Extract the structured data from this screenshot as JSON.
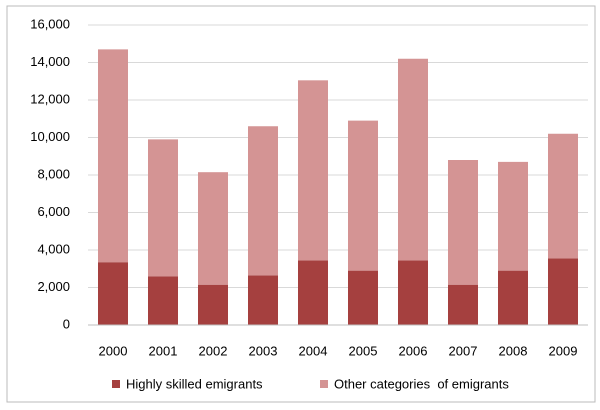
{
  "chart_data": {
    "type": "stacked-bar",
    "categories": [
      "2000",
      "2001",
      "2002",
      "2003",
      "2004",
      "2005",
      "2006",
      "2007",
      "2008",
      "2009"
    ],
    "series": [
      {
        "name": "Highly skilled emigrants",
        "color": "#a5403f",
        "values": [
          3350,
          2600,
          2150,
          2650,
          3450,
          2900,
          3450,
          2150,
          2900,
          3550
        ]
      },
      {
        "name": "Other categories  of emigrants",
        "color": "#d49494",
        "values": [
          11350,
          7300,
          6000,
          7950,
          9600,
          8000,
          10750,
          6650,
          5800,
          6650
        ]
      }
    ],
    "ylim": [
      0,
      16000
    ],
    "yticks": [
      0,
      {
        "value": 2000,
        "label": "2,000"
      },
      {
        "value": 4000,
        "label": "4,000"
      },
      {
        "value": 6000,
        "label": "6,000"
      },
      {
        "value": 8000,
        "label": "8,000"
      },
      {
        "value": 10000,
        "label": "10,000"
      },
      {
        "value": 12000,
        "label": "12,000"
      },
      {
        "value": 14000,
        "label": "14,000"
      },
      {
        "value": 16000,
        "label": "16,000"
      }
    ],
    "grid": true,
    "legend": "bottom"
  }
}
